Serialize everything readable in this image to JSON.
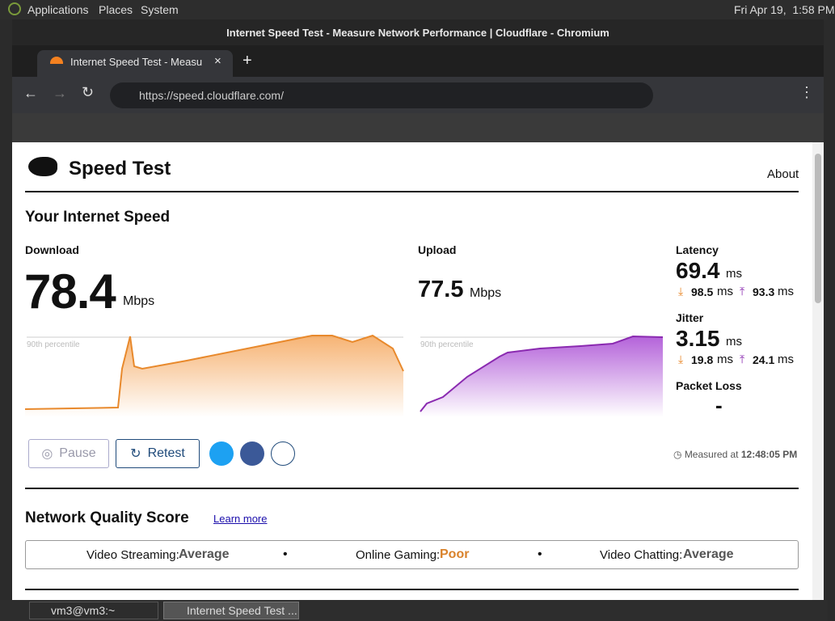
{
  "desktop": {
    "menu": [
      "Applications",
      "Places",
      "System"
    ],
    "clock": "Fri Apr 19,  1:58 PM"
  },
  "window": {
    "title": "Internet Speed Test - Measure Network Performance | Cloudflare - Chromium",
    "tab": "Internet Speed Test - Measu",
    "url": "https://speed.cloudflare.com/"
  },
  "page": {
    "brand": "Speed Test",
    "about": "About",
    "heading": "Your Internet Speed",
    "download": {
      "label": "Download",
      "value": "78.4",
      "unit": "Mbps",
      "percentile": "90th percentile"
    },
    "upload": {
      "label": "Upload",
      "value": "77.5",
      "unit": "Mbps",
      "percentile": "90th percentile"
    },
    "latency": {
      "label": "Latency",
      "value": "69.4",
      "unit": "ms",
      "down": "98.5",
      "down_unit": "ms",
      "up": "93.3",
      "up_unit": "ms"
    },
    "jitter": {
      "label": "Jitter",
      "value": "3.15",
      "unit": "ms",
      "down": "19.8",
      "down_unit": "ms",
      "up": "24.1",
      "up_unit": "ms"
    },
    "packet_loss": {
      "label": "Packet Loss",
      "value": "-"
    },
    "buttons": {
      "pause": "Pause",
      "retest": "Retest"
    },
    "measured": {
      "label": "Measured at",
      "time": "12:48:05 PM"
    },
    "quality": {
      "heading": "Network Quality Score",
      "link": "Learn more",
      "items": [
        {
          "label": "Video Streaming:",
          "value": "Average"
        },
        {
          "label": "Online Gaming:",
          "value": "Poor"
        },
        {
          "label": "Video Chatting:",
          "value": "Average"
        }
      ]
    }
  },
  "taskbar": [
    "vm3@vm3:~",
    "Internet Speed Test ..."
  ]
}
